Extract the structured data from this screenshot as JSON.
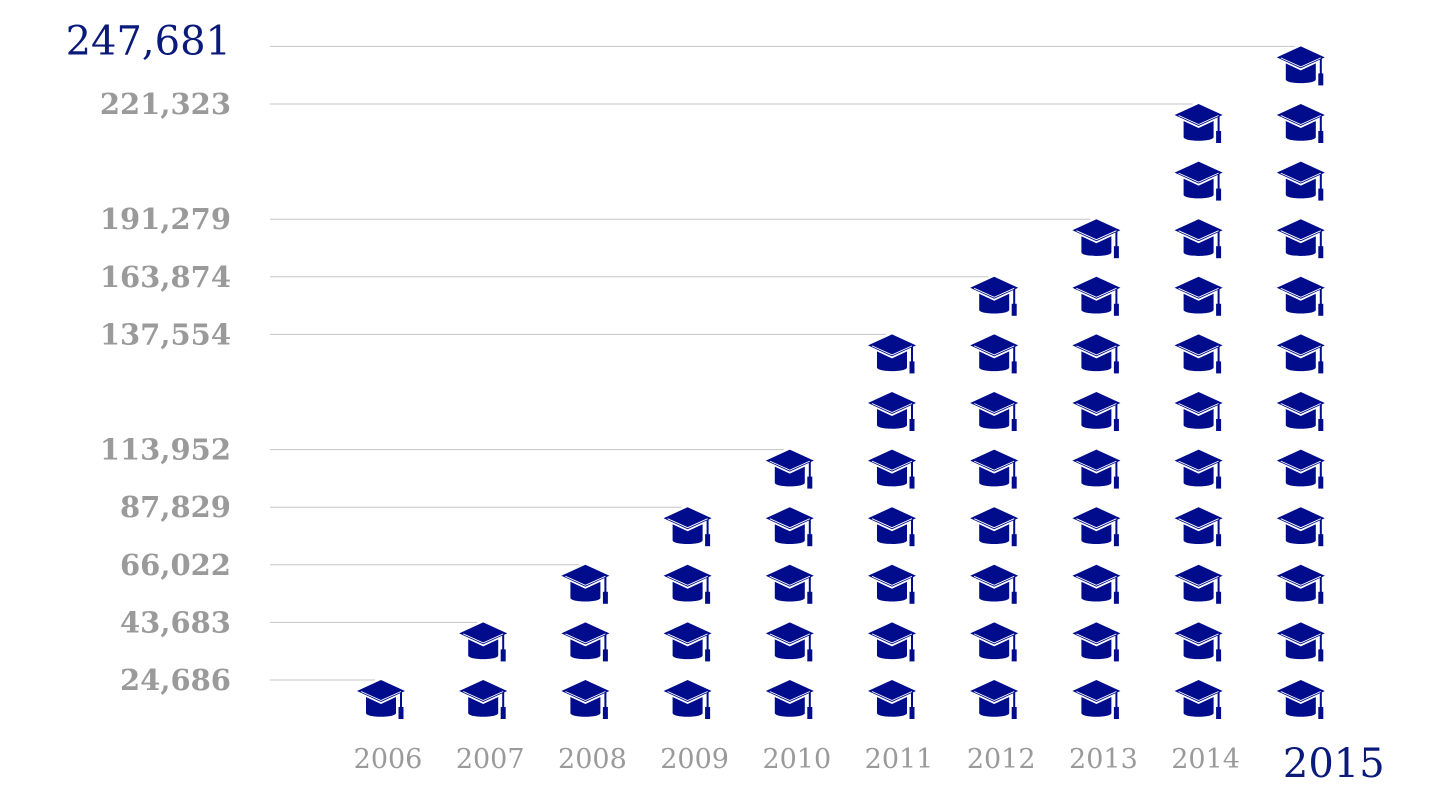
{
  "chart_data": {
    "type": "bar",
    "categories": [
      "2006",
      "2007",
      "2008",
      "2009",
      "2010",
      "2011",
      "2012",
      "2013",
      "2014",
      "2015"
    ],
    "values": [
      24686,
      43683,
      66022,
      87829,
      113952,
      137554,
      163874,
      191279,
      221323,
      247681
    ],
    "icon_counts": [
      1,
      2,
      3,
      4,
      5,
      7,
      8,
      9,
      11,
      12
    ],
    "icon": "graduation-cap-icon",
    "highlight_category": "2015",
    "highlight_value_label": "247,681",
    "value_labels": [
      "24,686",
      "43,683",
      "66,022",
      "87,829",
      "113,952",
      "137,554",
      "163,874",
      "191,279",
      "221,323",
      "247,681"
    ],
    "title": "",
    "xlabel": "",
    "ylabel": "",
    "grid": true,
    "colors": {
      "icon": "#000c8c",
      "label": "#9a9a9a",
      "highlight": "#0a1a7a",
      "grid": "#c4c4c4"
    }
  }
}
